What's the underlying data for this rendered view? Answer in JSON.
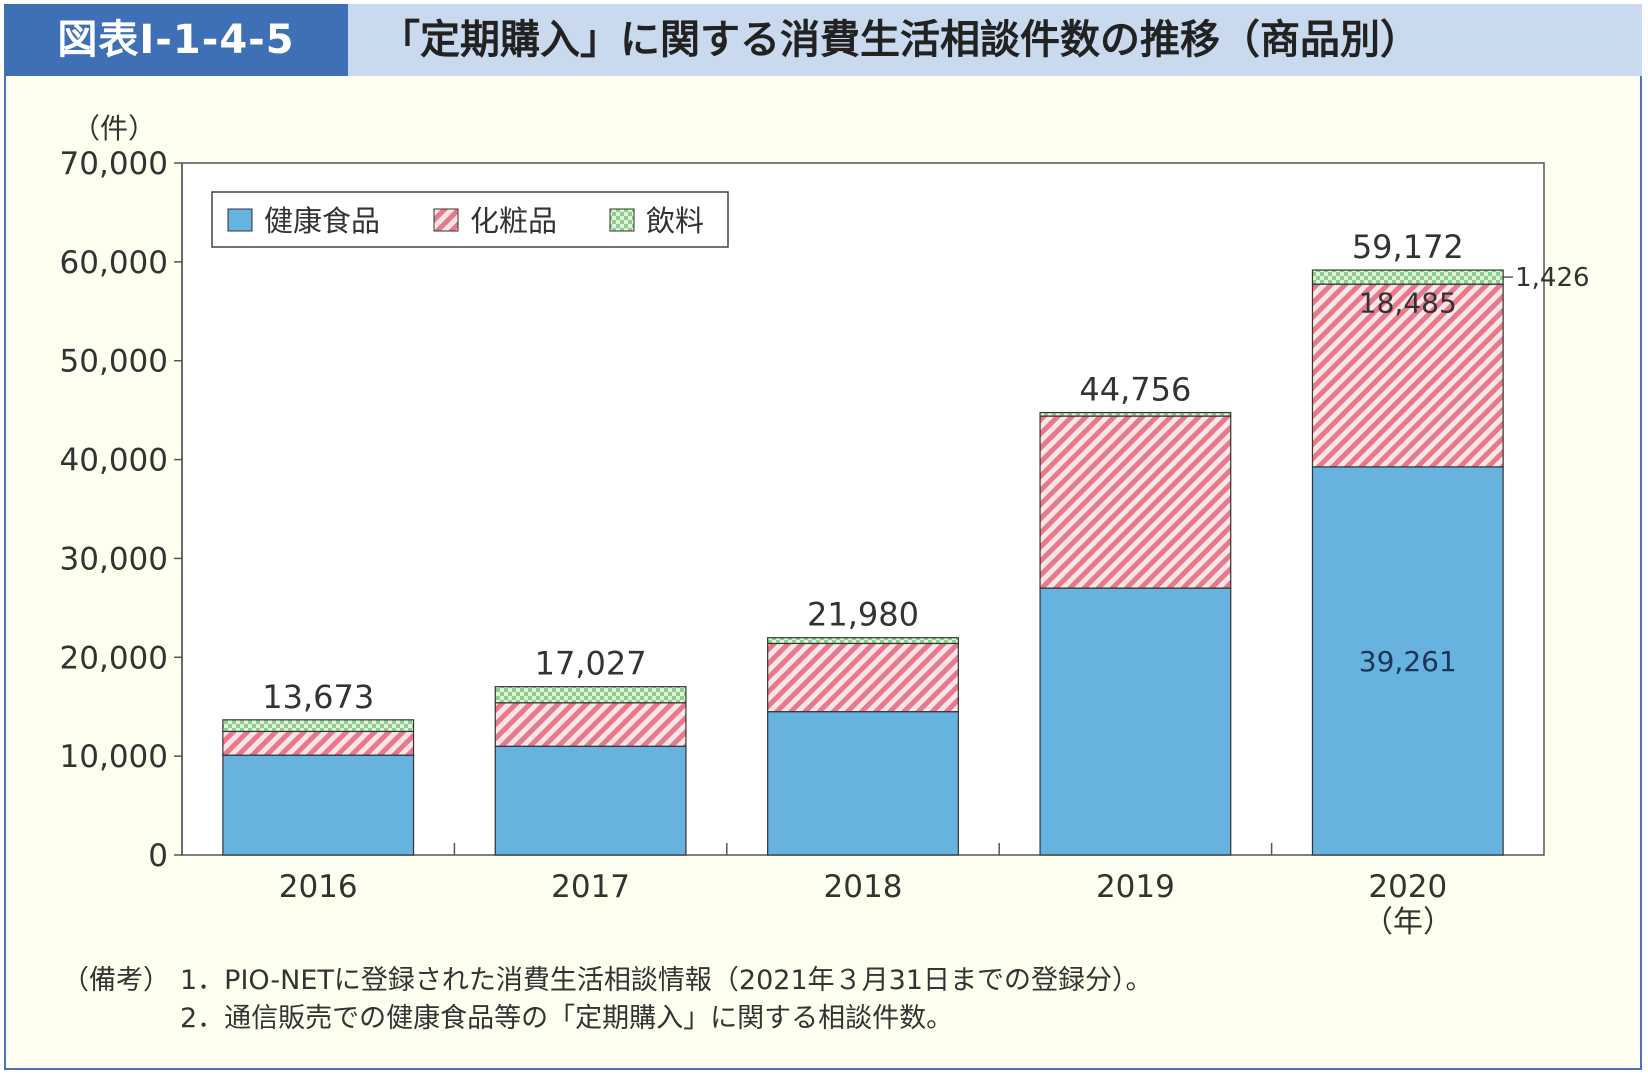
{
  "header": {
    "figure_label": "図表Ⅰ-1-4-5",
    "title": "「定期購入」に関する消費生活相談件数の推移（商品別）"
  },
  "colors": {
    "health_food": "#66b3e0",
    "cosmetics": "#e47a8a",
    "drinks": "#8fce8a",
    "frame": "#4a74b8"
  },
  "chart_data": {
    "type": "bar",
    "stacked": true,
    "categories": [
      "2016",
      "2017",
      "2018",
      "2019",
      "2020"
    ],
    "series": [
      {
        "name": "健康食品",
        "values": [
          10100,
          11000,
          14500,
          27000,
          39261
        ]
      },
      {
        "name": "化粧品",
        "values": [
          2400,
          4400,
          6900,
          17400,
          18485
        ]
      },
      {
        "name": "飲料",
        "values": [
          1173,
          1627,
          580,
          356,
          1426
        ]
      }
    ],
    "totals": [
      "13,673",
      "17,027",
      "21,980",
      "44,756",
      "59,172"
    ],
    "annotations": {
      "health_food_2020": "39,261",
      "cosmetics_2020": "18,485",
      "drinks_2020": "1,426"
    },
    "yticks": [
      "0",
      "10,000",
      "20,000",
      "30,000",
      "40,000",
      "50,000",
      "60,000",
      "70,000"
    ],
    "ylim": [
      0,
      70000
    ],
    "y_unit": "（件）",
    "x_unit": "（年）",
    "legend_position": "top-left"
  },
  "notes": {
    "lead": "（備考）",
    "items": [
      "1．PIO-NETに登録された消費生活相談情報（2021年３月31日までの登録分）。",
      "2．通信販売での健康食品等の「定期購入」に関する相談件数。"
    ]
  }
}
